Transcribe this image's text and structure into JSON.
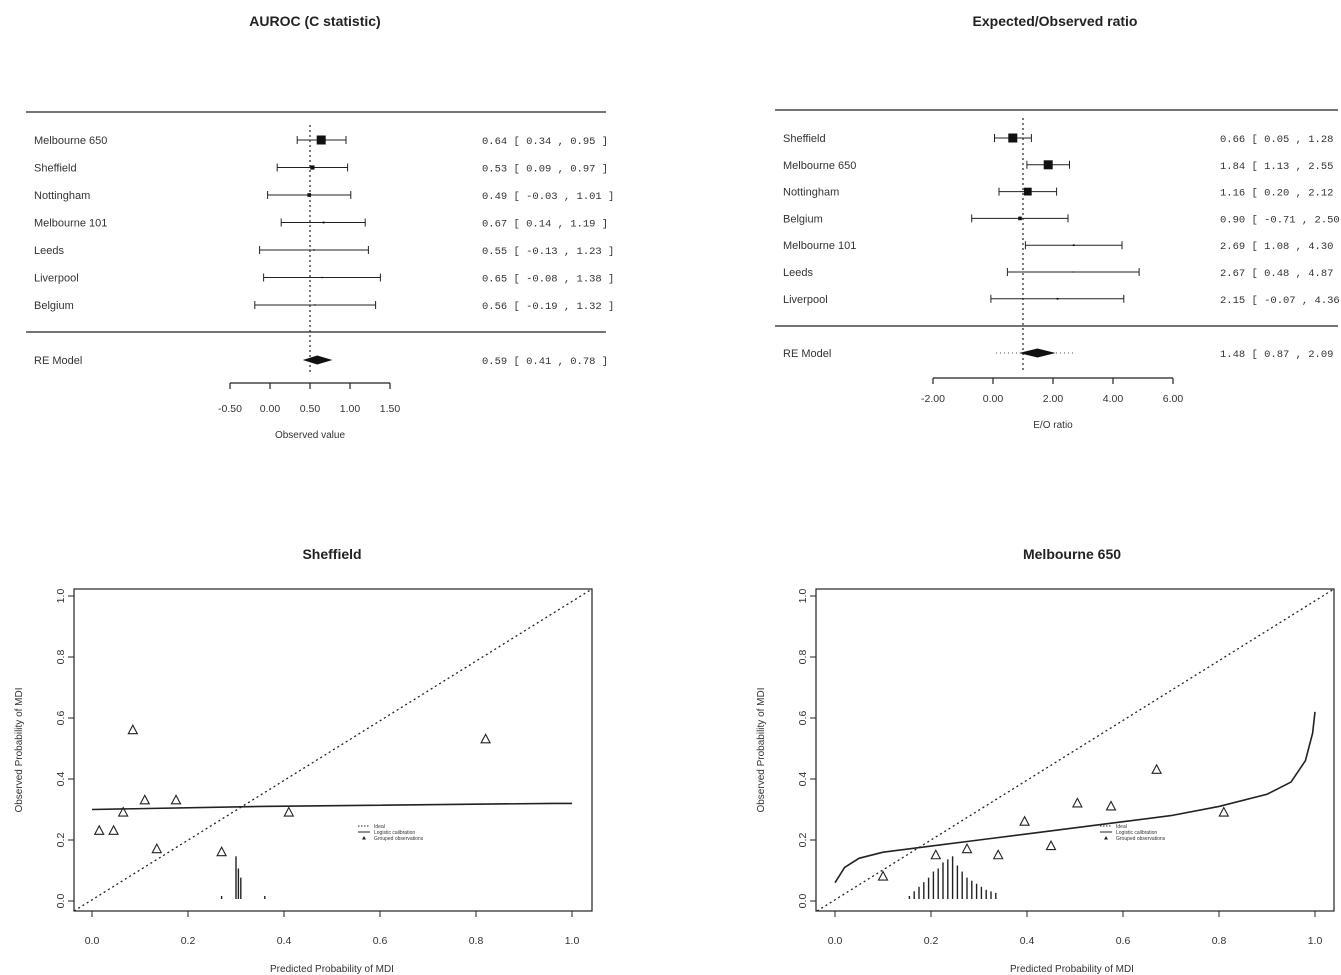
{
  "chart_data": [
    {
      "type": "forest",
      "title": "AUROC (C statistic)",
      "xlabel": "Observed value",
      "xticks": [
        -0.5,
        0,
        0.5,
        1,
        1.5
      ],
      "xtick_labels": [
        "-0.50",
        "0.00",
        "0.50",
        "1.00",
        "1.50"
      ],
      "xlim": [
        -0.5,
        1.5
      ],
      "reference_line": 0.5,
      "studies": [
        {
          "label": "Melbourne 650",
          "estimate": 0.64,
          "lower": 0.34,
          "upper": 0.95,
          "ci_text": "0.64 [ 0.34 , 0.95 ]",
          "weight": 3.0
        },
        {
          "label": "Sheffield",
          "estimate": 0.53,
          "lower": 0.09,
          "upper": 0.97,
          "ci_text": "0.53 [ 0.09 , 0.97 ]",
          "weight": 1.4
        },
        {
          "label": "Nottingham",
          "estimate": 0.49,
          "lower": -0.03,
          "upper": 1.01,
          "ci_text": "0.49 [ -0.03 , 1.01 ]",
          "weight": 1.2
        },
        {
          "label": "Melbourne 101",
          "estimate": 0.67,
          "lower": 0.14,
          "upper": 1.19,
          "ci_text": "0.67 [ 0.14 , 1.19 ]",
          "weight": 0.6
        },
        {
          "label": "Leeds",
          "estimate": 0.55,
          "lower": -0.13,
          "upper": 1.23,
          "ci_text": "0.55 [ -0.13 , 1.23 ]",
          "weight": 0.5
        },
        {
          "label": "Liverpool",
          "estimate": 0.65,
          "lower": -0.08,
          "upper": 1.38,
          "ci_text": "0.65 [ -0.08 , 1.38 ]",
          "weight": 0.45
        },
        {
          "label": "Belgium",
          "estimate": 0.56,
          "lower": -0.19,
          "upper": 1.32,
          "ci_text": "0.56 [ -0.19 , 1.32 ]",
          "weight": 0.45
        }
      ],
      "summary": {
        "label": "RE Model",
        "estimate": 0.59,
        "lower": 0.41,
        "upper": 0.78,
        "ci_text": "0.59 [ 0.41 , 0.78 ]"
      }
    },
    {
      "type": "forest",
      "title": "Expected/Observed ratio",
      "xlabel": "E/O ratio",
      "xticks": [
        -2,
        0,
        2,
        4,
        6
      ],
      "xtick_labels": [
        "-2.00",
        "0.00",
        "2.00",
        "4.00",
        "6.00"
      ],
      "xlim": [
        -2,
        6
      ],
      "reference_line": 1,
      "studies": [
        {
          "label": "Sheffield",
          "estimate": 0.66,
          "lower": 0.05,
          "upper": 1.28,
          "ci_text": "0.66 [ 0.05 , 1.28 ]",
          "weight": 3.0
        },
        {
          "label": "Melbourne 650",
          "estimate": 1.84,
          "lower": 1.13,
          "upper": 2.55,
          "ci_text": "1.84 [ 1.13 , 2.55 ]",
          "weight": 3.0
        },
        {
          "label": "Nottingham",
          "estimate": 1.16,
          "lower": 0.2,
          "upper": 2.12,
          "ci_text": "1.16 [ 0.20 , 2.12 ]",
          "weight": 2.6
        },
        {
          "label": "Belgium",
          "estimate": 0.9,
          "lower": -0.71,
          "upper": 2.5,
          "ci_text": "0.90 [ -0.71 , 2.50 ]",
          "weight": 1.2
        },
        {
          "label": "Melbourne 101",
          "estimate": 2.69,
          "lower": 1.08,
          "upper": 4.3,
          "ci_text": "2.69 [ 1.08 , 4.30 ]",
          "weight": 0.6
        },
        {
          "label": "Leeds",
          "estimate": 2.67,
          "lower": 0.48,
          "upper": 4.87,
          "ci_text": "2.67 [ 0.48 , 4.87 ]",
          "weight": 0.4
        },
        {
          "label": "Liverpool",
          "estimate": 2.15,
          "lower": -0.07,
          "upper": 4.36,
          "ci_text": "2.15 [ -0.07 , 4.36 ]",
          "weight": 0.6
        }
      ],
      "summary": {
        "label": "RE Model",
        "estimate": 1.48,
        "lower": 0.87,
        "upper": 2.09,
        "ci_text": "1.48 [ 0.87 , 2.09 ]",
        "pi_lower": 0.1,
        "pi_upper": 2.7
      }
    },
    {
      "type": "scatter",
      "title": "Sheffield",
      "xlabel": "Predicted Probability of MDI",
      "ylabel": "Observed Probability of MDI",
      "xlim": [
        0,
        1
      ],
      "ylim": [
        0,
        1
      ],
      "xticks": [
        0,
        0.2,
        0.4,
        0.6,
        0.8,
        1.0
      ],
      "xtick_labels": [
        "0.0",
        "0.2",
        "0.4",
        "0.6",
        "0.8",
        "1.0"
      ],
      "yticks": [
        0,
        0.2,
        0.4,
        0.6,
        0.8,
        1.0
      ],
      "ytick_labels": [
        "0.0",
        "0.2",
        "0.4",
        "0.6",
        "0.8",
        "1.0"
      ],
      "legend": [
        "Ideal",
        "Logistic calibration",
        "Grouped observations"
      ],
      "legend_position": "right",
      "ideal_line": [
        [
          0,
          0
        ],
        [
          1,
          1
        ]
      ],
      "calibration_curve": [
        [
          0,
          0.3
        ],
        [
          0.35,
          0.31
        ],
        [
          0.96,
          0.32
        ],
        [
          1.0,
          0.32
        ]
      ],
      "grouped_observations": [
        [
          0.015,
          0.23
        ],
        [
          0.045,
          0.23
        ],
        [
          0.065,
          0.29
        ],
        [
          0.085,
          0.56
        ],
        [
          0.11,
          0.33
        ],
        [
          0.135,
          0.17
        ],
        [
          0.175,
          0.33
        ],
        [
          0.27,
          0.16
        ],
        [
          0.41,
          0.29
        ],
        [
          0.82,
          0.53
        ]
      ],
      "histogram": [
        [
          0.27,
          0.01
        ],
        [
          0.3,
          0.14
        ],
        [
          0.305,
          0.1
        ],
        [
          0.31,
          0.07
        ],
        [
          0.36,
          0.01
        ]
      ]
    },
    {
      "type": "scatter",
      "title": "Melbourne 650",
      "xlabel": "Predicted Probability of MDI",
      "ylabel": "Observed Probability of MDI",
      "xlim": [
        0,
        1
      ],
      "ylim": [
        0,
        1
      ],
      "xticks": [
        0,
        0.2,
        0.4,
        0.6,
        0.8,
        1.0
      ],
      "xtick_labels": [
        "0.0",
        "0.2",
        "0.4",
        "0.6",
        "0.8",
        "1.0"
      ],
      "yticks": [
        0,
        0.2,
        0.4,
        0.6,
        0.8,
        1.0
      ],
      "ytick_labels": [
        "0.0",
        "0.2",
        "0.4",
        "0.6",
        "0.8",
        "1.0"
      ],
      "legend": [
        "Ideal",
        "Logistic calibration",
        "Grouped observations"
      ],
      "legend_position": "right",
      "ideal_line": [
        [
          0,
          0
        ],
        [
          1,
          1
        ]
      ],
      "calibration_curve": [
        [
          0.0,
          0.06
        ],
        [
          0.02,
          0.11
        ],
        [
          0.05,
          0.14
        ],
        [
          0.1,
          0.16
        ],
        [
          0.2,
          0.18
        ],
        [
          0.3,
          0.2
        ],
        [
          0.4,
          0.22
        ],
        [
          0.5,
          0.24
        ],
        [
          0.6,
          0.26
        ],
        [
          0.7,
          0.28
        ],
        [
          0.8,
          0.31
        ],
        [
          0.9,
          0.35
        ],
        [
          0.95,
          0.39
        ],
        [
          0.98,
          0.46
        ],
        [
          0.995,
          0.55
        ],
        [
          1.0,
          0.62
        ]
      ],
      "grouped_observations": [
        [
          0.1,
          0.08
        ],
        [
          0.21,
          0.15
        ],
        [
          0.275,
          0.17
        ],
        [
          0.34,
          0.15
        ],
        [
          0.395,
          0.26
        ],
        [
          0.45,
          0.18
        ],
        [
          0.505,
          0.32
        ],
        [
          0.575,
          0.31
        ],
        [
          0.67,
          0.43
        ],
        [
          0.81,
          0.29
        ]
      ],
      "histogram": [
        [
          0.155,
          0.01
        ],
        [
          0.165,
          0.025
        ],
        [
          0.175,
          0.04
        ],
        [
          0.185,
          0.055
        ],
        [
          0.195,
          0.07
        ],
        [
          0.205,
          0.09
        ],
        [
          0.215,
          0.1
        ],
        [
          0.225,
          0.12
        ],
        [
          0.235,
          0.13
        ],
        [
          0.245,
          0.14
        ],
        [
          0.255,
          0.11
        ],
        [
          0.265,
          0.09
        ],
        [
          0.275,
          0.07
        ],
        [
          0.285,
          0.06
        ],
        [
          0.295,
          0.05
        ],
        [
          0.305,
          0.04
        ],
        [
          0.315,
          0.03
        ],
        [
          0.325,
          0.025
        ],
        [
          0.335,
          0.02
        ]
      ]
    }
  ]
}
